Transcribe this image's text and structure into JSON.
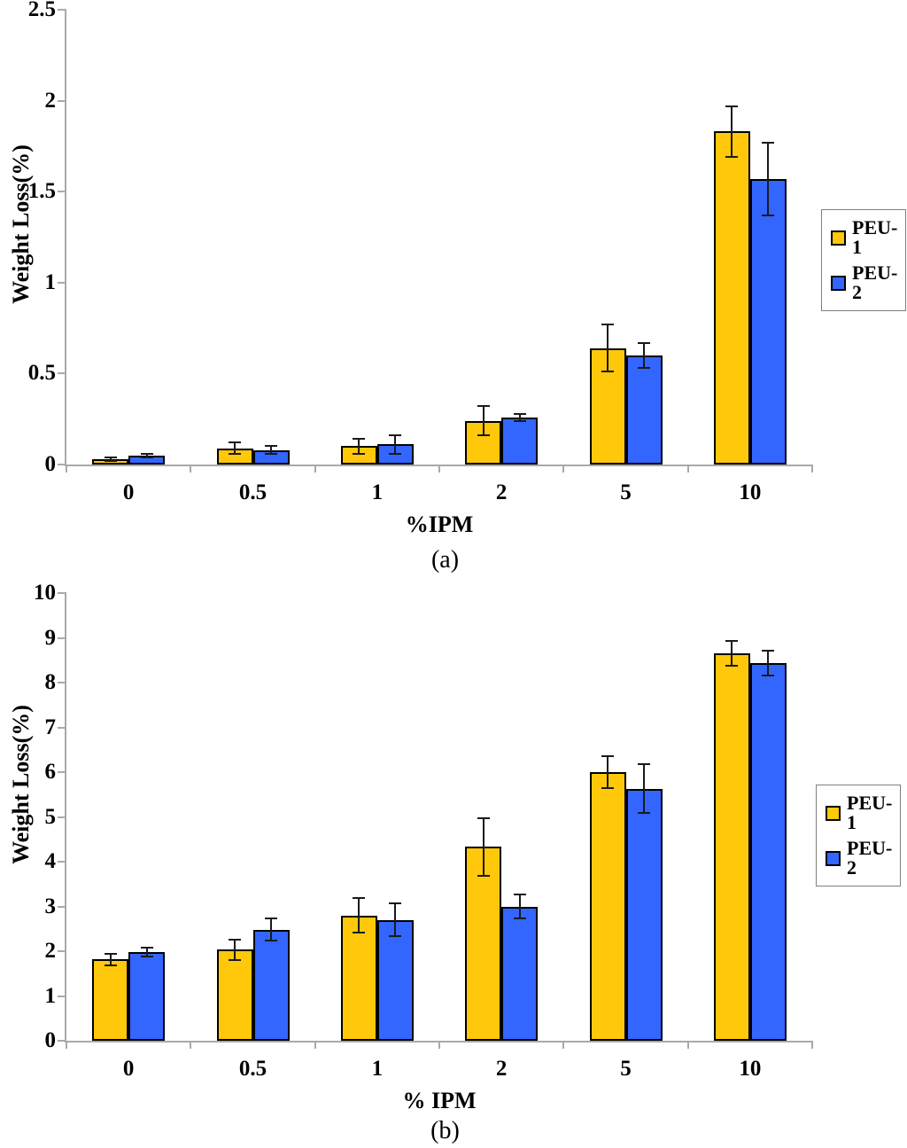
{
  "colors": {
    "peu1": "#FFC80A",
    "peu2": "#3366FF",
    "bar_border": "#000000",
    "axis_line": "#A9A9A9",
    "error_bar": "#1A1A1A",
    "legend_border": "#7F7F7F"
  },
  "chart_data": [
    {
      "type": "bar",
      "caption": "(a)",
      "xlabel": "%IPM",
      "ylabel": "Weight Loss(%)",
      "categories": [
        "0",
        "0.5",
        "1",
        "2",
        "5",
        "10"
      ],
      "ylim": [
        0,
        2.5
      ],
      "yticks": [
        0,
        0.5,
        1,
        1.5,
        2,
        2.5
      ],
      "ytick_labels": [
        "0",
        "0.5",
        "1",
        "1.5",
        "2",
        "2.5"
      ],
      "grid": false,
      "legend_position": "right",
      "legend": [
        "PEU-1",
        "PEU-2"
      ],
      "series": [
        {
          "name": "PEU-1",
          "color_key": "peu1",
          "values": [
            0.03,
            0.09,
            0.1,
            0.24,
            0.64,
            1.83
          ],
          "errors": [
            0.01,
            0.03,
            0.04,
            0.08,
            0.13,
            0.14
          ]
        },
        {
          "name": "PEU-2",
          "color_key": "peu2",
          "values": [
            0.05,
            0.08,
            0.11,
            0.26,
            0.6,
            1.57
          ],
          "errors": [
            0.01,
            0.02,
            0.05,
            0.02,
            0.07,
            0.2
          ]
        }
      ]
    },
    {
      "type": "bar",
      "caption": "(b)",
      "xlabel": "% IPM",
      "ylabel": "Weight Loss(%)",
      "categories": [
        "0",
        "0.5",
        "1",
        "2",
        "5",
        "10"
      ],
      "ylim": [
        0,
        10
      ],
      "yticks": [
        0,
        1,
        2,
        3,
        4,
        5,
        6,
        7,
        8,
        9,
        10
      ],
      "ytick_labels": [
        "0",
        "1",
        "2",
        "3",
        "4",
        "5",
        "6",
        "7",
        "8",
        "9",
        "10"
      ],
      "grid": false,
      "legend_position": "right",
      "legend": [
        "PEU-1",
        "PEU-2"
      ],
      "series": [
        {
          "name": "PEU-1",
          "color_key": "peu1",
          "values": [
            1.82,
            2.03,
            2.8,
            4.33,
            6.0,
            8.65
          ],
          "errors": [
            0.13,
            0.23,
            0.38,
            0.65,
            0.35,
            0.28
          ]
        },
        {
          "name": "PEU-2",
          "color_key": "peu2",
          "values": [
            1.98,
            2.48,
            2.7,
            3.0,
            5.63,
            8.43
          ],
          "errors": [
            0.1,
            0.25,
            0.36,
            0.27,
            0.55,
            0.28
          ]
        }
      ]
    }
  ]
}
